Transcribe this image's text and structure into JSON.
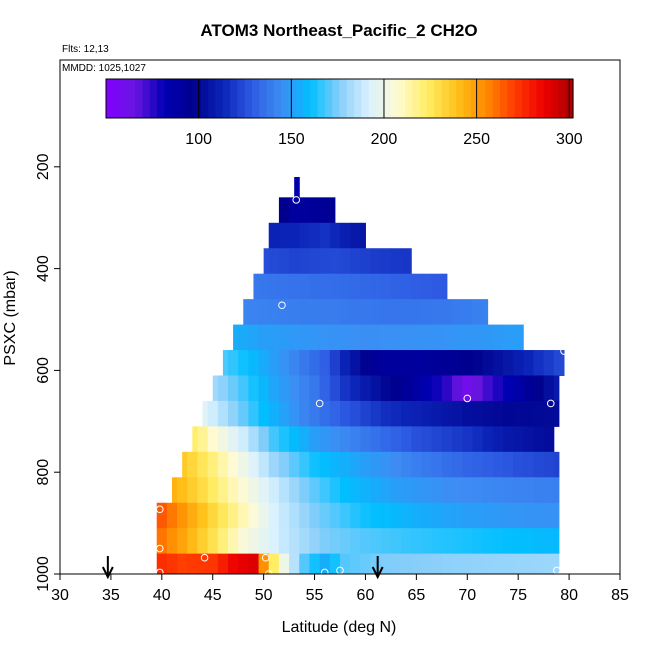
{
  "chart_data": {
    "type": "heatmap",
    "title": "ATOM3 Northeast_Pacific_2 CH2O",
    "flights_note": "Flts: 12,13",
    "dates_note": "MMDD: 1025,1027",
    "xlabel": "Latitude (deg N)",
    "ylabel": "PSXC (mbar)",
    "xlim": [
      30,
      85
    ],
    "ylim": [
      1000,
      0
    ],
    "x_ticks": [
      "30",
      "35",
      "40",
      "45",
      "50",
      "55",
      "60",
      "65",
      "70",
      "75",
      "80",
      "85"
    ],
    "y_ticks": [
      "200",
      "400",
      "600",
      "800",
      "1000"
    ],
    "colorbar": {
      "range": [
        50,
        302
      ],
      "ticks": [
        "100",
        "150",
        "200",
        "250",
        "300"
      ],
      "colors": [
        "#8000ff",
        "#6a14e0",
        "#0000b4",
        "#00008c",
        "#0b24b8",
        "#2e5be3",
        "#3d8df4",
        "#00bfff",
        "#87cefa",
        "#d9f1ff",
        "#fffad2",
        "#ffee66",
        "#ffc21a",
        "#ff8c00",
        "#ff3b00",
        "#ee0000",
        "#a80000"
      ]
    },
    "column_bins": {
      "start": 39.5,
      "end": 79.5,
      "step": 1
    },
    "rows": [
      {
        "p_top": 220,
        "p_bot": 260,
        "lat_min": 53,
        "lat_max": 53.5,
        "values": [
          [
            53,
            85
          ]
        ]
      },
      {
        "p_top": 260,
        "p_bot": 310,
        "lat_min": 51.5,
        "lat_max": 57,
        "values": [
          [
            51.5,
            100
          ],
          [
            53,
            90
          ],
          [
            55,
            92
          ],
          [
            57,
            95
          ]
        ]
      },
      {
        "p_top": 310,
        "p_bot": 360,
        "lat_min": 50.5,
        "lat_max": 60,
        "values": [
          [
            50.5,
            112
          ],
          [
            53,
            113
          ],
          [
            56,
            117
          ],
          [
            59,
            108
          ],
          [
            60,
            106
          ]
        ]
      },
      {
        "p_top": 360,
        "p_bot": 410,
        "lat_min": 50,
        "lat_max": 64.5,
        "values": [
          [
            50,
            125
          ],
          [
            53,
            122
          ],
          [
            57,
            124
          ],
          [
            61,
            120
          ],
          [
            64.5,
            118
          ]
        ]
      },
      {
        "p_top": 410,
        "p_bot": 460,
        "lat_min": 49,
        "lat_max": 68,
        "values": [
          [
            49,
            138
          ],
          [
            53,
            136
          ],
          [
            58,
            134
          ],
          [
            63,
            131
          ],
          [
            68,
            128
          ]
        ]
      },
      {
        "p_top": 460,
        "p_bot": 510,
        "lat_min": 48,
        "lat_max": 72,
        "values": [
          [
            48,
            142
          ],
          [
            52,
            140
          ],
          [
            57,
            139
          ],
          [
            63,
            137
          ],
          [
            68,
            138
          ],
          [
            72,
            141
          ]
        ]
      },
      {
        "p_top": 510,
        "p_bot": 560,
        "lat_min": 47,
        "lat_max": 75.5,
        "values": [
          [
            47,
            155
          ],
          [
            50,
            150
          ],
          [
            55,
            147
          ],
          [
            60,
            145
          ],
          [
            66,
            146
          ],
          [
            72,
            148
          ],
          [
            75.5,
            150
          ]
        ]
      },
      {
        "p_top": 560,
        "p_bot": 610,
        "lat_min": 46,
        "lat_max": 79.5,
        "values": [
          [
            46,
            170
          ],
          [
            49,
            158
          ],
          [
            53,
            142
          ],
          [
            56,
            130
          ],
          [
            58,
            112
          ],
          [
            61,
            92
          ],
          [
            65,
            90
          ],
          [
            70,
            96
          ],
          [
            75,
            110
          ],
          [
            79.5,
            125
          ]
        ]
      },
      {
        "p_top": 610,
        "p_bot": 660,
        "lat_min": 45,
        "lat_max": 79,
        "values": [
          [
            45,
            182
          ],
          [
            48,
            168
          ],
          [
            51,
            152
          ],
          [
            55,
            138
          ],
          [
            58,
            118
          ],
          [
            62,
            100
          ],
          [
            65,
            88
          ],
          [
            68,
            75
          ],
          [
            70,
            60
          ],
          [
            72,
            72
          ],
          [
            76,
            92
          ],
          [
            79,
            110
          ]
        ]
      },
      {
        "p_top": 660,
        "p_bot": 710,
        "lat_min": 44,
        "lat_max": 79,
        "values": [
          [
            44,
            196
          ],
          [
            47,
            178
          ],
          [
            50,
            160
          ],
          [
            54,
            142
          ],
          [
            58,
            128
          ],
          [
            62,
            116
          ],
          [
            66,
            110
          ],
          [
            70,
            104
          ],
          [
            74,
            100
          ],
          [
            79,
            102
          ]
        ]
      },
      {
        "p_top": 710,
        "p_bot": 760,
        "lat_min": 43,
        "lat_max": 78.5,
        "values": [
          [
            43,
            225
          ],
          [
            45,
            208
          ],
          [
            48,
            190
          ],
          [
            51,
            168
          ],
          [
            55,
            150
          ],
          [
            60,
            138
          ],
          [
            65,
            126
          ],
          [
            70,
            118
          ],
          [
            74,
            108
          ],
          [
            78.5,
            102
          ]
        ]
      },
      {
        "p_top": 760,
        "p_bot": 810,
        "lat_min": 42,
        "lat_max": 79,
        "values": [
          [
            42,
            238
          ],
          [
            45,
            220
          ],
          [
            48,
            200
          ],
          [
            51,
            180
          ],
          [
            55,
            162
          ],
          [
            60,
            150
          ],
          [
            65,
            140
          ],
          [
            70,
            132
          ],
          [
            75,
            126
          ],
          [
            79,
            122
          ]
        ]
      },
      {
        "p_top": 810,
        "p_bot": 860,
        "lat_min": 41,
        "lat_max": 79,
        "values": [
          [
            41,
            245
          ],
          [
            44,
            230
          ],
          [
            47,
            212
          ],
          [
            50,
            195
          ],
          [
            54,
            175
          ],
          [
            58,
            160
          ],
          [
            63,
            150
          ],
          [
            68,
            145
          ],
          [
            74,
            142
          ],
          [
            79,
            140
          ]
        ]
      },
      {
        "p_top": 860,
        "p_bot": 910,
        "lat_min": 39.5,
        "lat_max": 79,
        "values": [
          [
            39.5,
            268
          ],
          [
            42,
            252
          ],
          [
            45,
            232
          ],
          [
            48,
            212
          ],
          [
            51,
            192
          ],
          [
            55,
            175
          ],
          [
            60,
            162
          ],
          [
            65,
            155
          ],
          [
            70,
            150
          ],
          [
            75,
            147
          ],
          [
            79,
            146
          ]
        ]
      },
      {
        "p_top": 910,
        "p_bot": 960,
        "lat_min": 39.5,
        "lat_max": 79,
        "values": [
          [
            39.5,
            262
          ],
          [
            42,
            248
          ],
          [
            45,
            228
          ],
          [
            48,
            205
          ],
          [
            52,
            188
          ],
          [
            56,
            175
          ],
          [
            60,
            170
          ],
          [
            65,
            166
          ],
          [
            70,
            163
          ],
          [
            75,
            160
          ],
          [
            79,
            158
          ]
        ]
      },
      {
        "p_top": 960,
        "p_bot": 1000,
        "lat_min": 39.5,
        "lat_max": 79,
        "values": [
          [
            39.5,
            275
          ],
          [
            42,
            270
          ],
          [
            45,
            272
          ],
          [
            47,
            285
          ],
          [
            49,
            290
          ],
          [
            50.5,
            235
          ],
          [
            52,
            200
          ],
          [
            54,
            170
          ],
          [
            56,
            155
          ],
          [
            58,
            170
          ],
          [
            62,
            175
          ],
          [
            70,
            178
          ],
          [
            79,
            180
          ]
        ]
      }
    ],
    "sample_points": [
      {
        "lat": 53.2,
        "p": 265
      },
      {
        "lat": 51.8,
        "p": 472
      },
      {
        "lat": 55.5,
        "p": 665
      },
      {
        "lat": 70.0,
        "p": 655
      },
      {
        "lat": 78.2,
        "p": 665
      },
      {
        "lat": 79.5,
        "p": 562
      },
      {
        "lat": 39.8,
        "p": 873
      },
      {
        "lat": 39.8,
        "p": 950
      },
      {
        "lat": 44.2,
        "p": 968
      },
      {
        "lat": 50.2,
        "p": 968
      },
      {
        "lat": 50.5,
        "p": 1000
      },
      {
        "lat": 56.0,
        "p": 997
      },
      {
        "lat": 57.5,
        "p": 993
      },
      {
        "lat": 39.8,
        "p": 997
      },
      {
        "lat": 78.8,
        "p": 993
      }
    ],
    "airport_arrows": [
      34.7,
      61.2
    ]
  }
}
